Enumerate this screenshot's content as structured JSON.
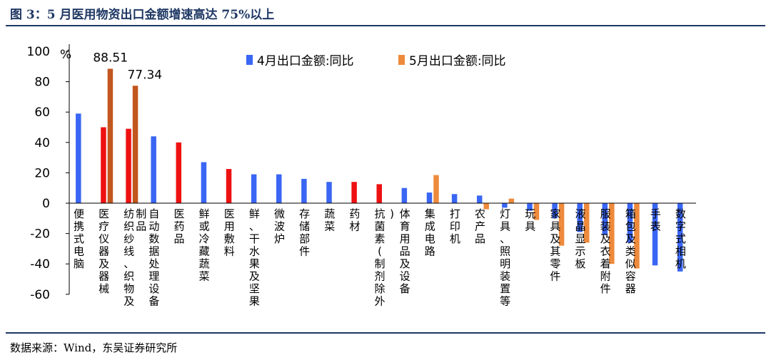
{
  "header": {
    "title": "图 3：5 月医用物资出口金额增速高达 75%以上"
  },
  "footer": {
    "source": "数据来源：Wind，东吴证券研究所"
  },
  "colors": {
    "blue": "#3a66f4",
    "orange": "#ee8a3c",
    "red": "#ee1111",
    "brown": "#c2561e",
    "title": "#1f3864"
  },
  "chart_data": {
    "type": "bar",
    "unit_label": "%",
    "ylim": [
      -60,
      100
    ],
    "yticks": [
      100,
      80,
      60,
      40,
      20,
      0,
      -20,
      -40,
      -60
    ],
    "legend_position": "top",
    "series": [
      {
        "name": "4月出口金额:同比",
        "values": [
          59,
          50,
          49,
          44,
          40,
          27,
          22.5,
          19,
          19,
          16,
          14,
          14,
          12.5,
          10,
          7,
          6,
          5,
          -3,
          -5,
          -10,
          -19,
          -21,
          -26,
          -41,
          -45
        ]
      },
      {
        "name": "5月出口金额:同比",
        "values": [
          null,
          88.51,
          77.34,
          null,
          null,
          null,
          null,
          null,
          null,
          null,
          null,
          null,
          null,
          null,
          18.5,
          null,
          -4,
          3,
          -11,
          -28,
          -26,
          -40,
          -43,
          null,
          null
        ]
      }
    ],
    "bar_colors_series1": [
      "blue",
      "red",
      "red",
      "blue",
      "red",
      "blue",
      "red",
      "blue",
      "blue",
      "blue",
      "blue",
      "red",
      "red",
      "blue",
      "blue",
      "blue",
      "blue",
      "blue",
      "blue",
      "blue",
      "blue",
      "blue",
      "blue",
      "blue",
      "blue"
    ],
    "bar_colors_series2": [
      null,
      "brown",
      "brown",
      null,
      null,
      null,
      null,
      null,
      null,
      null,
      null,
      null,
      null,
      null,
      "orange",
      null,
      "orange",
      "orange",
      "orange",
      "orange",
      "orange",
      "orange",
      "orange",
      null,
      null
    ],
    "data_labels": [
      "88.51",
      "77.34"
    ],
    "categories": [
      "便携式电脑",
      "医疗仪器及器械",
      "纺织纱线、织物及制品",
      "自动数据处理设备",
      "医药品",
      "鲜或冷藏蔬菜",
      "医用敷料",
      "鲜、干水果及坚果",
      "微波炉",
      "存储部件",
      "蔬菜",
      "药材",
      "抗菌素(制剂除外)",
      "体育用品及设备",
      "集成电路",
      "打印机",
      "农产品",
      "灯具、照明装置等",
      "玩具",
      "家具及其零件",
      "液晶显示板",
      "服装及衣着附件",
      "箱包及类似容器",
      "手表",
      "数字式相机"
    ]
  }
}
